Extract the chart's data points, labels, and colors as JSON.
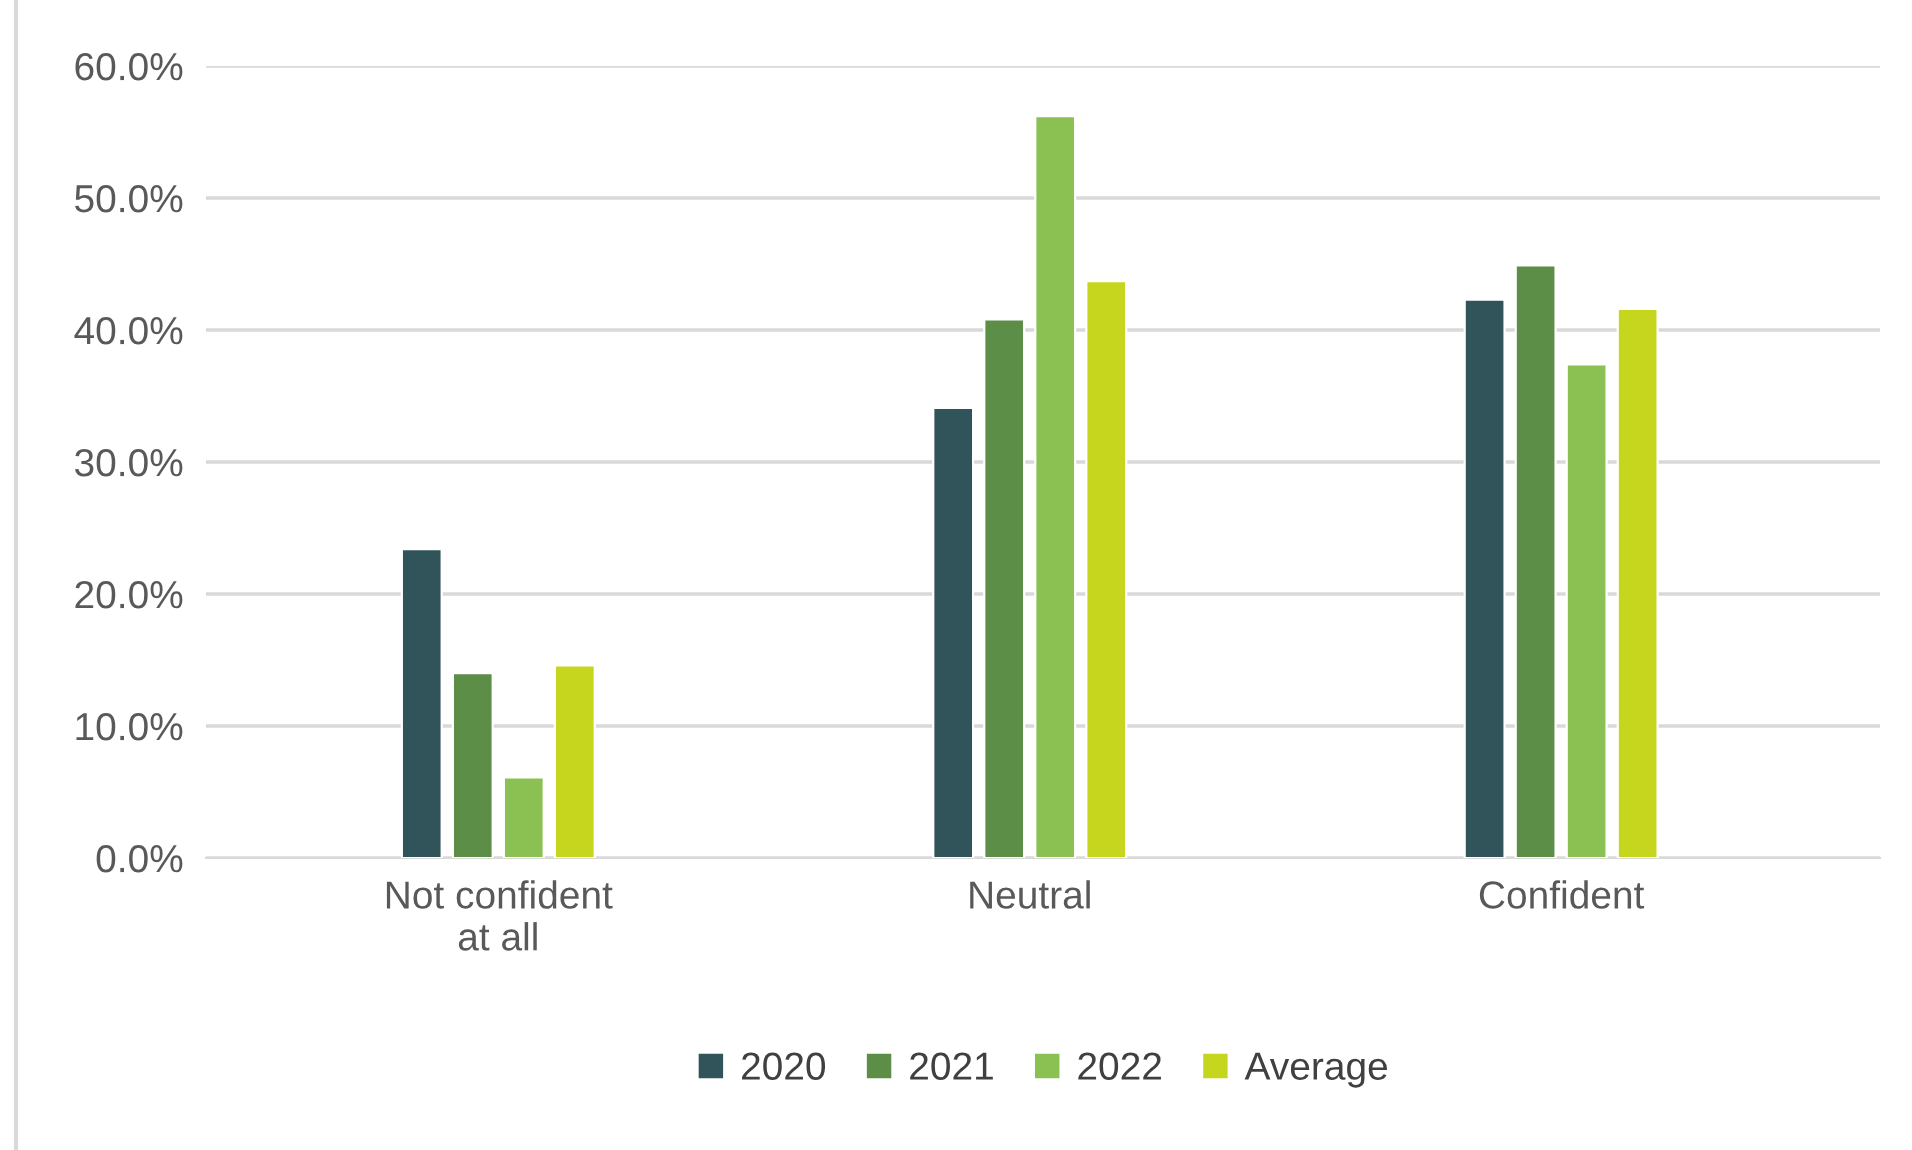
{
  "chart_data": {
    "type": "bar",
    "categories": [
      "Not confident\nat all",
      "Neutral",
      "Confident"
    ],
    "series": [
      {
        "name": "2020",
        "color": "#30545a",
        "values": [
          23.4,
          34.1,
          42.3
        ]
      },
      {
        "name": "2021",
        "color": "#5d8e47",
        "values": [
          14.0,
          40.8,
          44.9
        ]
      },
      {
        "name": "2022",
        "color": "#8bc053",
        "values": [
          6.1,
          56.2,
          37.4
        ]
      },
      {
        "name": "Average",
        "color": "#c6d61f",
        "values": [
          14.6,
          43.7,
          41.6
        ]
      }
    ],
    "ylim": [
      0,
      60
    ],
    "yticks": [
      {
        "value": 0,
        "label": "0.0%"
      },
      {
        "value": 10,
        "label": "10.0%"
      },
      {
        "value": 20,
        "label": "20.0%"
      },
      {
        "value": 30,
        "label": "30.0%"
      },
      {
        "value": 40,
        "label": "40.0%"
      },
      {
        "value": 50,
        "label": "50.0%"
      },
      {
        "value": 60,
        "label": "60.0%"
      }
    ],
    "grid": "y",
    "legend": "bottom"
  }
}
